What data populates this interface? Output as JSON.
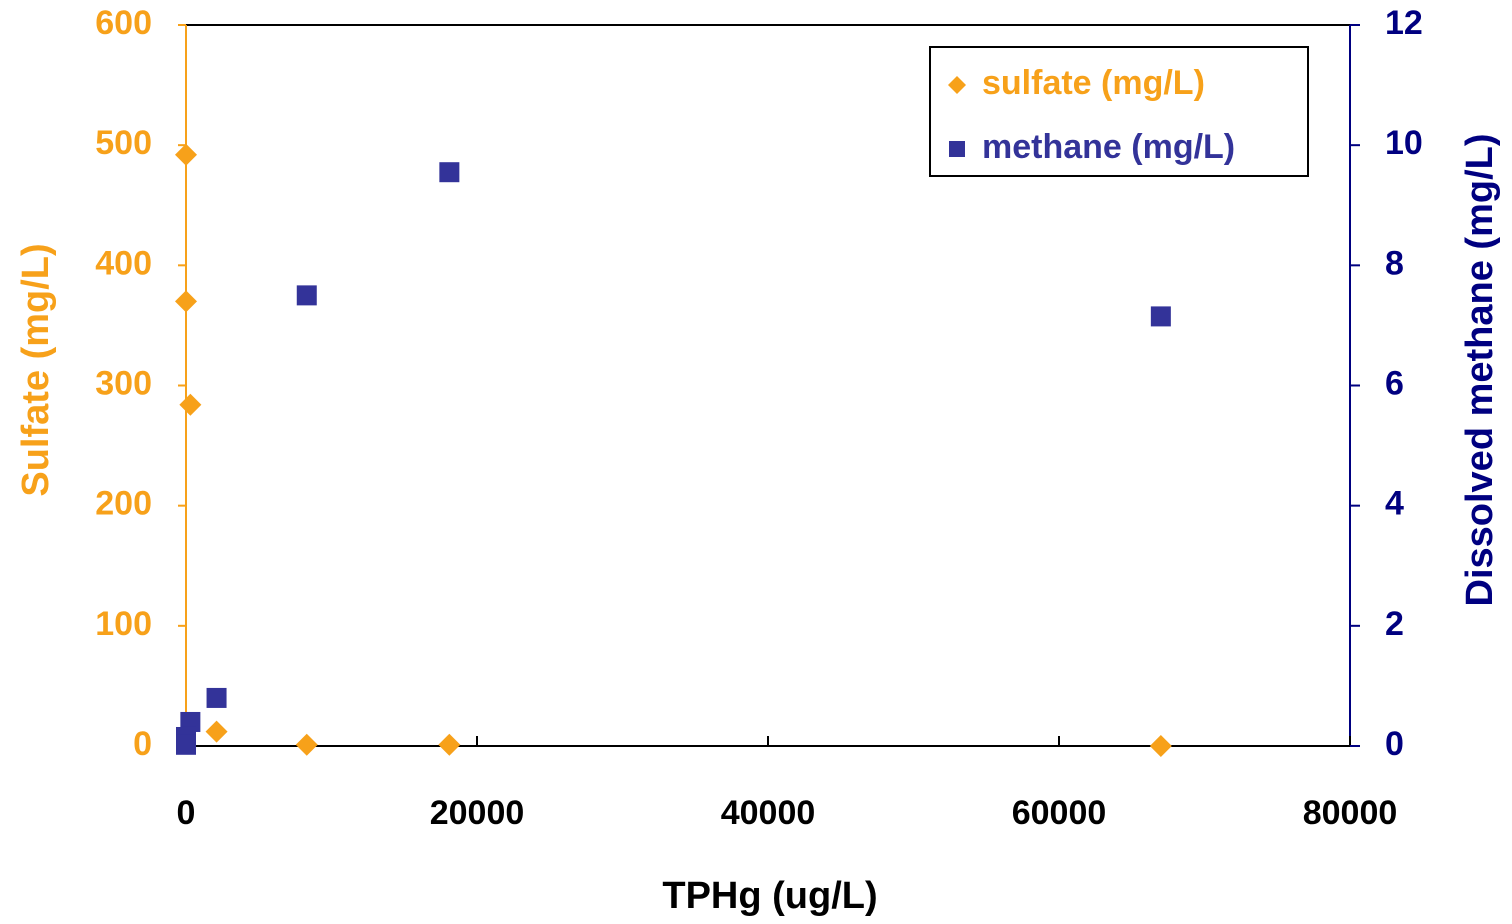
{
  "chart_data": {
    "type": "scatter",
    "x_label": "TPHg (ug/L)",
    "y_label": "Sulfate (mg/L)",
    "y2_label": "Dissolved methane (mg/L)",
    "xlim": [
      0,
      80000
    ],
    "xticks": [
      0,
      20000,
      40000,
      60000,
      80000
    ],
    "ylim": [
      0,
      600
    ],
    "yticks": [
      0,
      100,
      200,
      300,
      400,
      500,
      600
    ],
    "y2lim": [
      0,
      12
    ],
    "y2ticks": [
      0,
      2,
      4,
      6,
      8,
      10,
      12
    ],
    "y_color": "#f7a11a",
    "y2_color": "#000080",
    "legend": "upper right",
    "series": [
      {
        "name": "sulfate (mg/L)",
        "color": "#f7a11a",
        "marker": "diamond",
        "x": [
          0,
          0,
          300,
          2100,
          8300,
          18100,
          67000
        ],
        "values": [
          492,
          370,
          284,
          12,
          1,
          1,
          0
        ]
      },
      {
        "name": "methane (mg/L)",
        "color": "#333399",
        "marker": "square",
        "axis": "y2",
        "x": [
          18100,
          8300,
          67000,
          2100,
          300,
          0,
          0
        ],
        "values": [
          9.55,
          7.5,
          7.15,
          0.8,
          0.4,
          0.15,
          0.02
        ]
      }
    ]
  }
}
